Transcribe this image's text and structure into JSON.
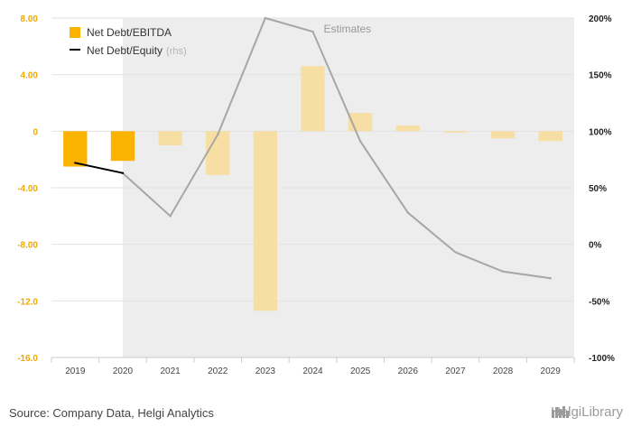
{
  "chart_data": {
    "type": "bar",
    "categories": [
      "2019",
      "2020",
      "2021",
      "2022",
      "2023",
      "2024",
      "2025",
      "2026",
      "2027",
      "2028",
      "2029"
    ],
    "estimates_from_index": 1,
    "estimates_label": "Estimates",
    "series": [
      {
        "name": "Net Debt/EBITDA",
        "kind": "bar",
        "axis": "left",
        "color": "#fbb200",
        "color_estimate": "#f7dfa4",
        "values": [
          -2.5,
          -2.1,
          -1.0,
          -3.1,
          -12.7,
          4.6,
          1.3,
          0.4,
          -0.1,
          -0.5,
          -0.7
        ]
      },
      {
        "name": "Net Debt/Equity",
        "name_suffix": "(rhs)",
        "kind": "line",
        "axis": "right",
        "color": "#000000",
        "color_estimate": "#a6a6a6",
        "values": [
          72,
          63,
          25,
          97,
          200,
          188,
          91,
          28,
          -7,
          -24,
          -30
        ]
      }
    ],
    "left_axis": {
      "min": -16,
      "max": 8,
      "ticks": [
        "8.00",
        "4.00",
        "0",
        "-4.00",
        "-8.00",
        "-12.0",
        "-16.0"
      ]
    },
    "right_axis": {
      "min": -100,
      "max": 200,
      "ticks": [
        "200%",
        "150%",
        "100%",
        "50%",
        "0%",
        "-50%",
        "-100%"
      ]
    },
    "legend_position": "top-left"
  },
  "footer": {
    "source": "Source: Company Data, Helgi Analytics",
    "brand": "HelgiLibrary"
  }
}
